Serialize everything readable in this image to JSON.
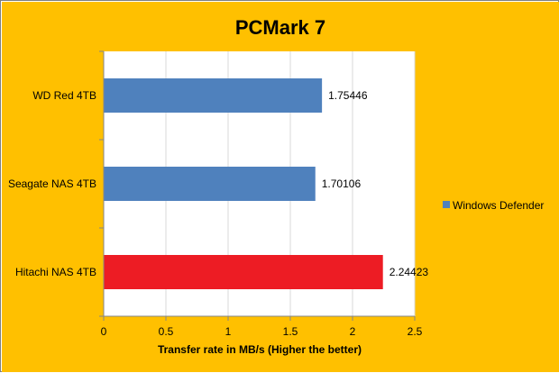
{
  "colors": {
    "background": "#FFC000",
    "plot_area": "#FFFFFF",
    "gridline": "#D9D9D9",
    "axis": "#868686",
    "default_bar": "#4F81BD",
    "highlight_bar": "#ED1C24"
  },
  "chart_data": {
    "type": "bar",
    "orientation": "horizontal",
    "title": "PCMark 7",
    "xlabel": "Transfer rate in MB/s (Higher the better)",
    "ylabel": "",
    "categories": [
      "WD Red 4TB",
      "Seagate NAS 4TB",
      "Hitachi NAS 4TB"
    ],
    "series": [
      {
        "name": "Windows Defender",
        "values": [
          1.75446,
          1.70106,
          2.24423
        ],
        "labels": [
          "1.75446",
          "1.70106",
          "2.24423"
        ],
        "colors": [
          "#4F81BD",
          "#4F81BD",
          "#ED1C24"
        ]
      }
    ],
    "xlim": [
      0,
      2.5
    ],
    "xticks": [
      0,
      0.5,
      1,
      1.5,
      2,
      2.5
    ],
    "xtick_labels": [
      "0",
      "0.5",
      "1",
      "1.5",
      "2",
      "2.5"
    ],
    "grid": "vertical",
    "legend": "right"
  }
}
